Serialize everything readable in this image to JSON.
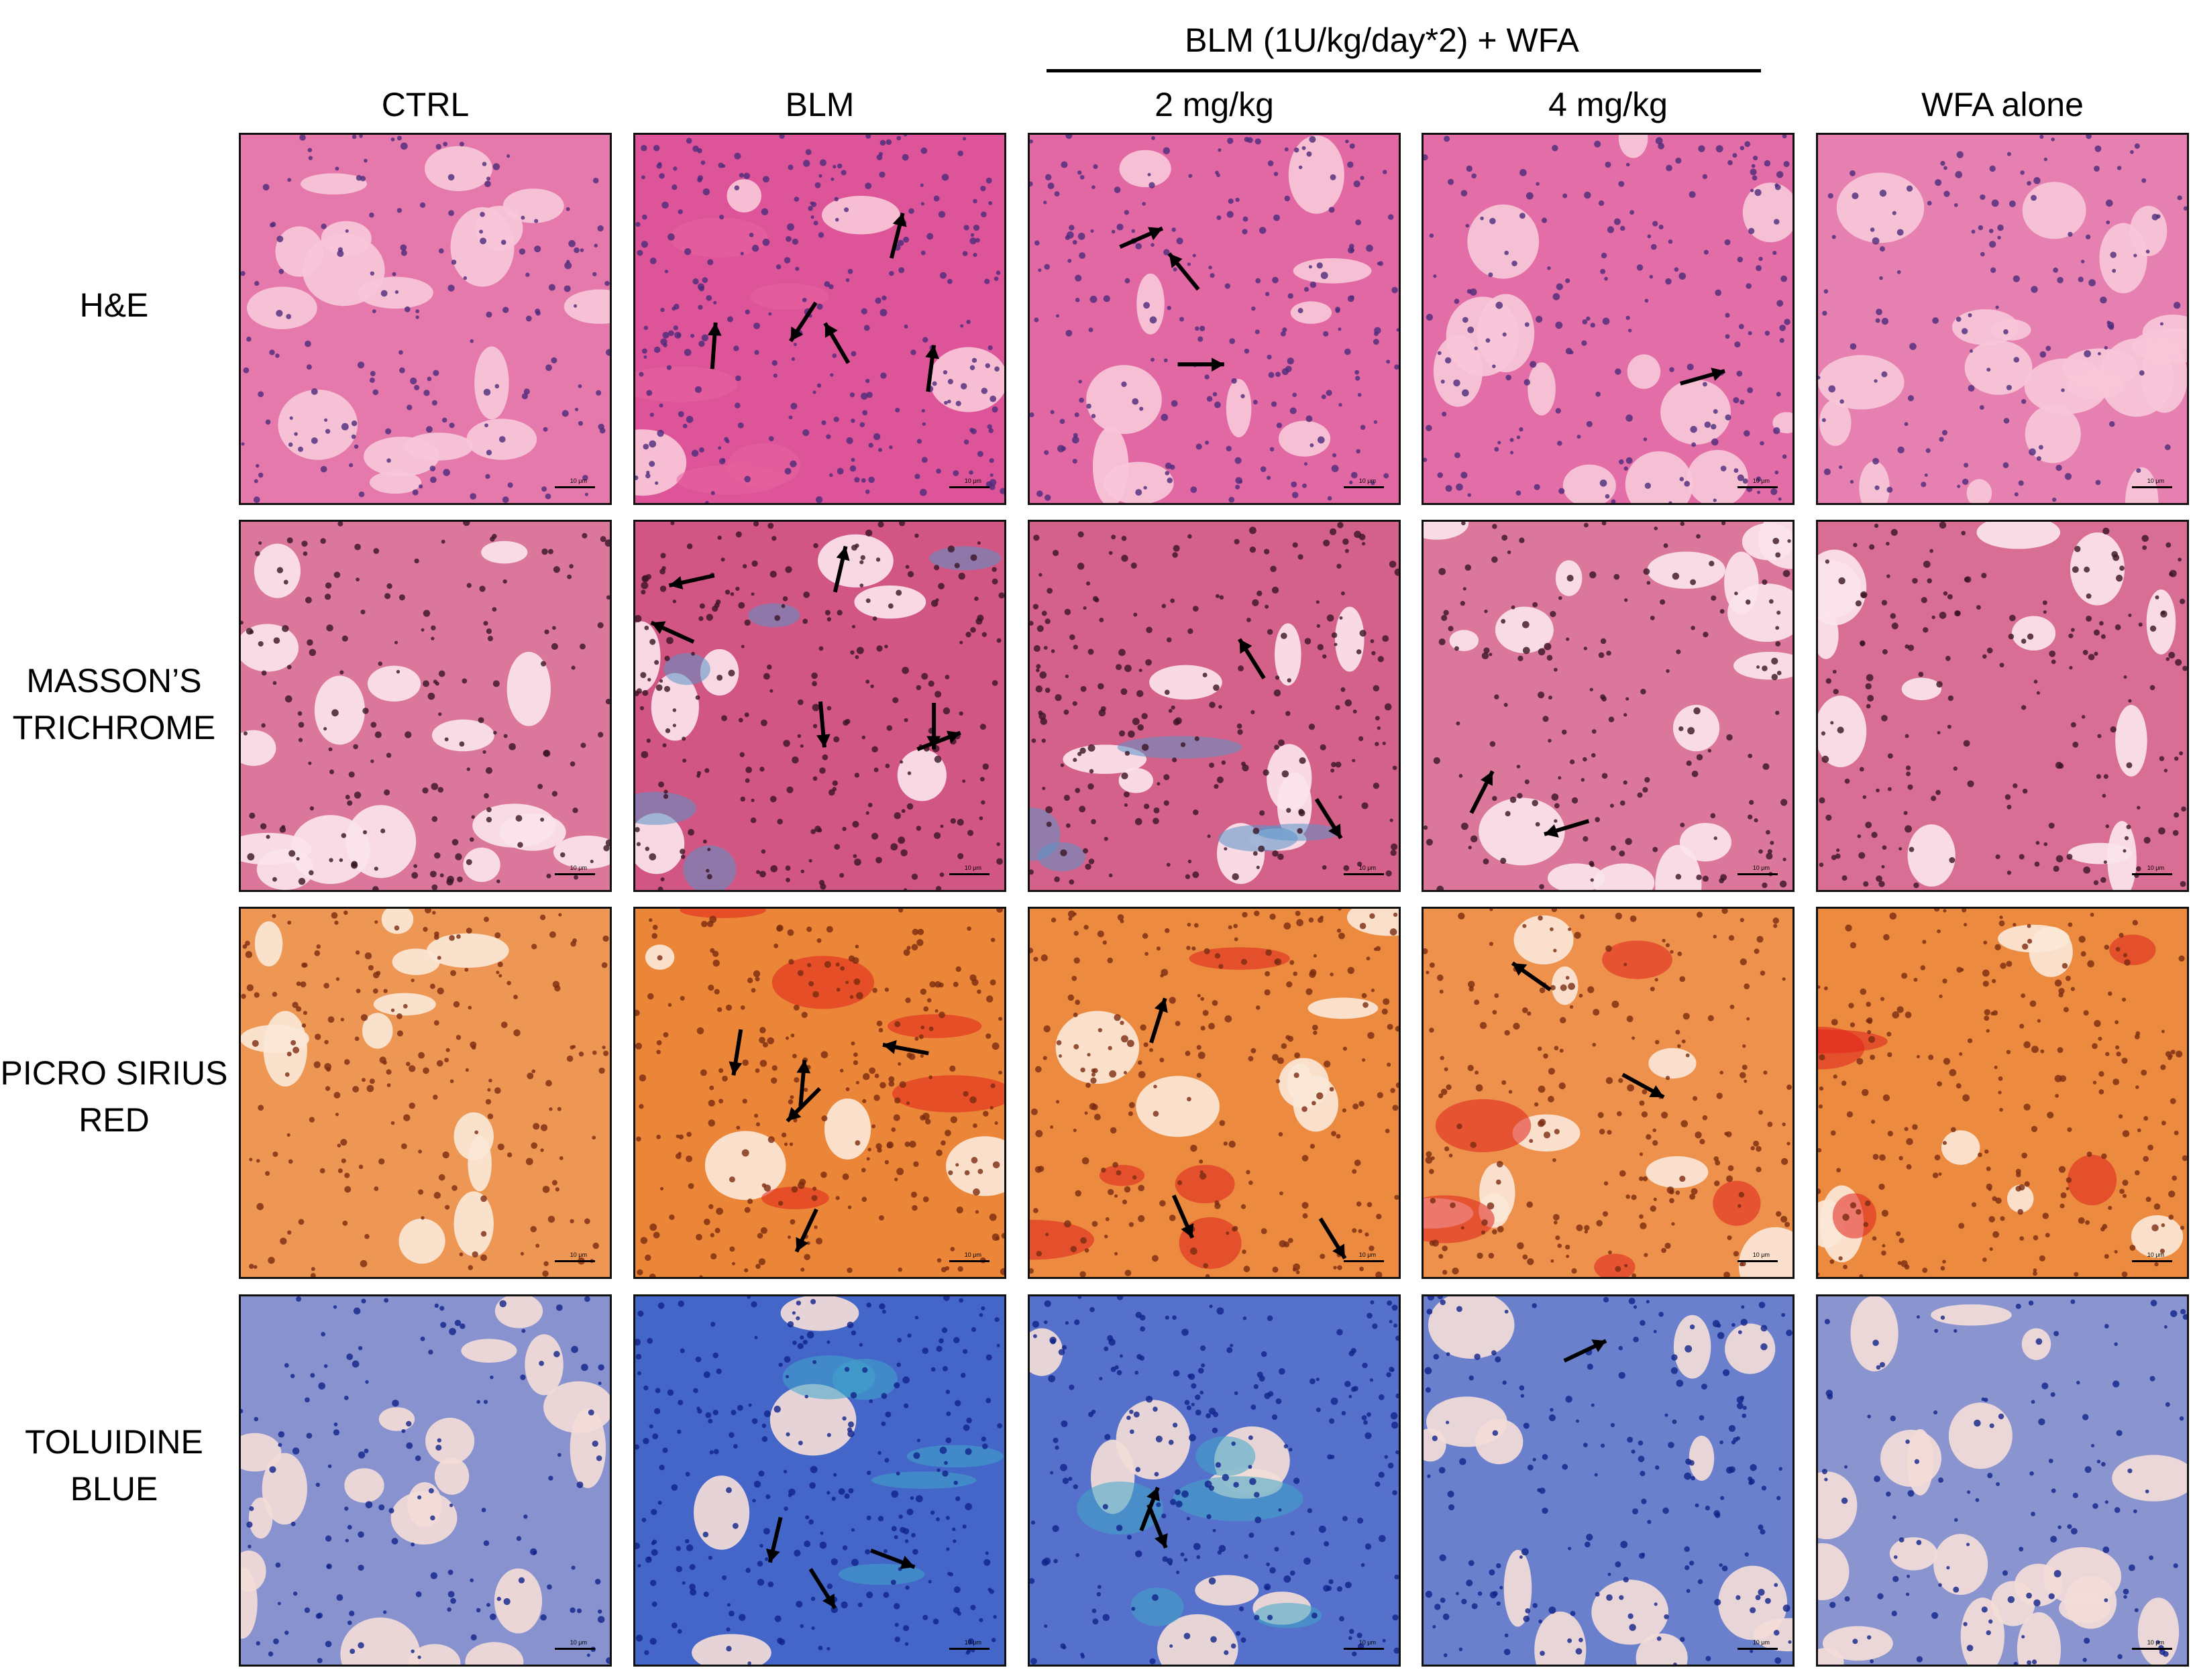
{
  "header": {
    "group_label": "BLM (1U/kg/day*2) + WFA",
    "columns": [
      "CTRL",
      "BLM",
      "2 mg/kg",
      "4 mg/kg",
      "WFA alone"
    ]
  },
  "rows": [
    {
      "label_lines": [
        "H&E"
      ],
      "bg": "#f7c7d8",
      "tissue": "#d9448f",
      "nuclei": "#4b2a7a",
      "accent": "#e8629f"
    },
    {
      "label_lines": [
        "MASSON’S",
        "TRICHROME"
      ],
      "bg": "#fbe4ec",
      "tissue": "#c8376b",
      "nuclei": "#3a1424",
      "accent": "#5a93c8"
    },
    {
      "label_lines": [
        "PICRO SIRIUS",
        "RED"
      ],
      "bg": "#fbe7d7",
      "tissue": "#e8761f",
      "nuclei": "#7a2a10",
      "accent": "#e0211c"
    },
    {
      "label_lines": [
        "TOLUIDINE",
        "BLUE"
      ],
      "bg": "#f3dcd8",
      "tissue": "#2b54c7",
      "nuclei": "#10238a",
      "accent": "#3fa6c9"
    }
  ],
  "scale_label": "10 μm",
  "arrows_per_panel": [
    [
      0,
      5,
      3,
      1,
      0
    ],
    [
      0,
      6,
      2,
      2,
      0
    ],
    [
      0,
      5,
      3,
      2,
      0
    ],
    [
      0,
      3,
      2,
      1,
      0
    ]
  ],
  "density": [
    [
      0.45,
      0.95,
      0.7,
      0.6,
      0.35
    ],
    [
      0.5,
      0.85,
      0.75,
      0.5,
      0.6
    ],
    [
      0.65,
      0.95,
      0.85,
      0.75,
      0.85
    ],
    [
      0.35,
      0.95,
      0.8,
      0.6,
      0.3
    ]
  ]
}
